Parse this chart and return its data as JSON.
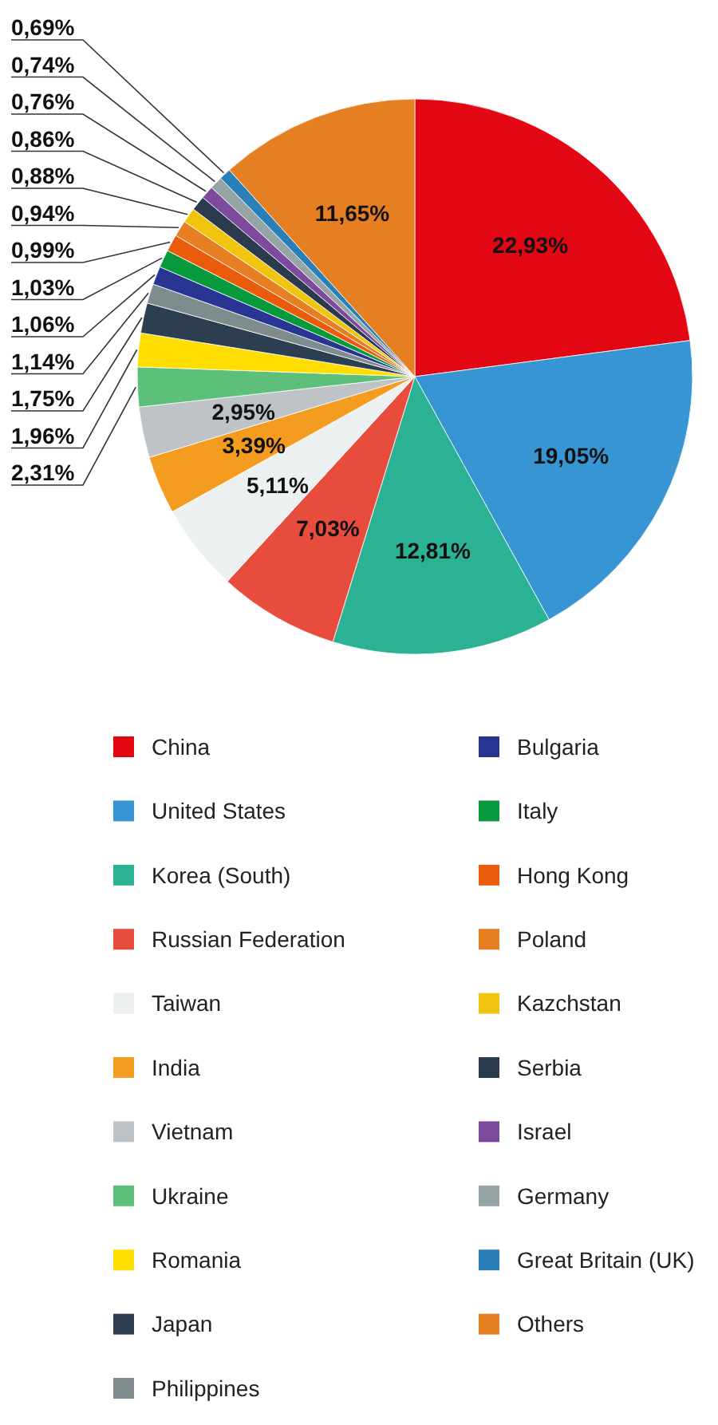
{
  "chart_data": {
    "type": "pie",
    "categories": [
      "China",
      "United States",
      "Korea (South)",
      "Russian Federation",
      "Taiwan",
      "India",
      "Vietnam",
      "Ukraine",
      "Romania",
      "Japan",
      "Philippines",
      "Bulgaria",
      "Italy",
      "Hong Kong",
      "Poland",
      "Kazchstan",
      "Serbia",
      "Israel",
      "Germany",
      "Great Britain (UK)",
      "Others"
    ],
    "values": [
      22.93,
      19.05,
      12.81,
      7.03,
      5.11,
      3.39,
      2.95,
      2.31,
      1.96,
      1.75,
      1.14,
      1.06,
      1.03,
      0.99,
      0.94,
      0.88,
      0.86,
      0.76,
      0.74,
      0.69,
      11.65
    ],
    "colors": [
      "#e30613",
      "#3895d3",
      "#2bb193",
      "#e84c3d",
      "#ecf0f1",
      "#f39c1f",
      "#bdc3c7",
      "#5cbf7a",
      "#ffdd00",
      "#2c3e50",
      "#7f8c8d",
      "#283593",
      "#079a3d",
      "#ea5b0c",
      "#e67e22",
      "#f1c40f",
      "#2b3a4c",
      "#7d4a9e",
      "#95a5a6",
      "#2980b9",
      "#e67e22"
    ],
    "value_labels": [
      "22,93%",
      "19,05%",
      "12,81%",
      "7,03%",
      "5,11%",
      "3,39%",
      "2,95%",
      "2,31%",
      "1,96%",
      "1,75%",
      "1,14%",
      "1,06%",
      "1,03%",
      "0,99%",
      "0,94%",
      "0,88%",
      "0,86%",
      "0,76%",
      "0,74%",
      "0,69%",
      "11,65%"
    ],
    "legend": "bottom"
  }
}
